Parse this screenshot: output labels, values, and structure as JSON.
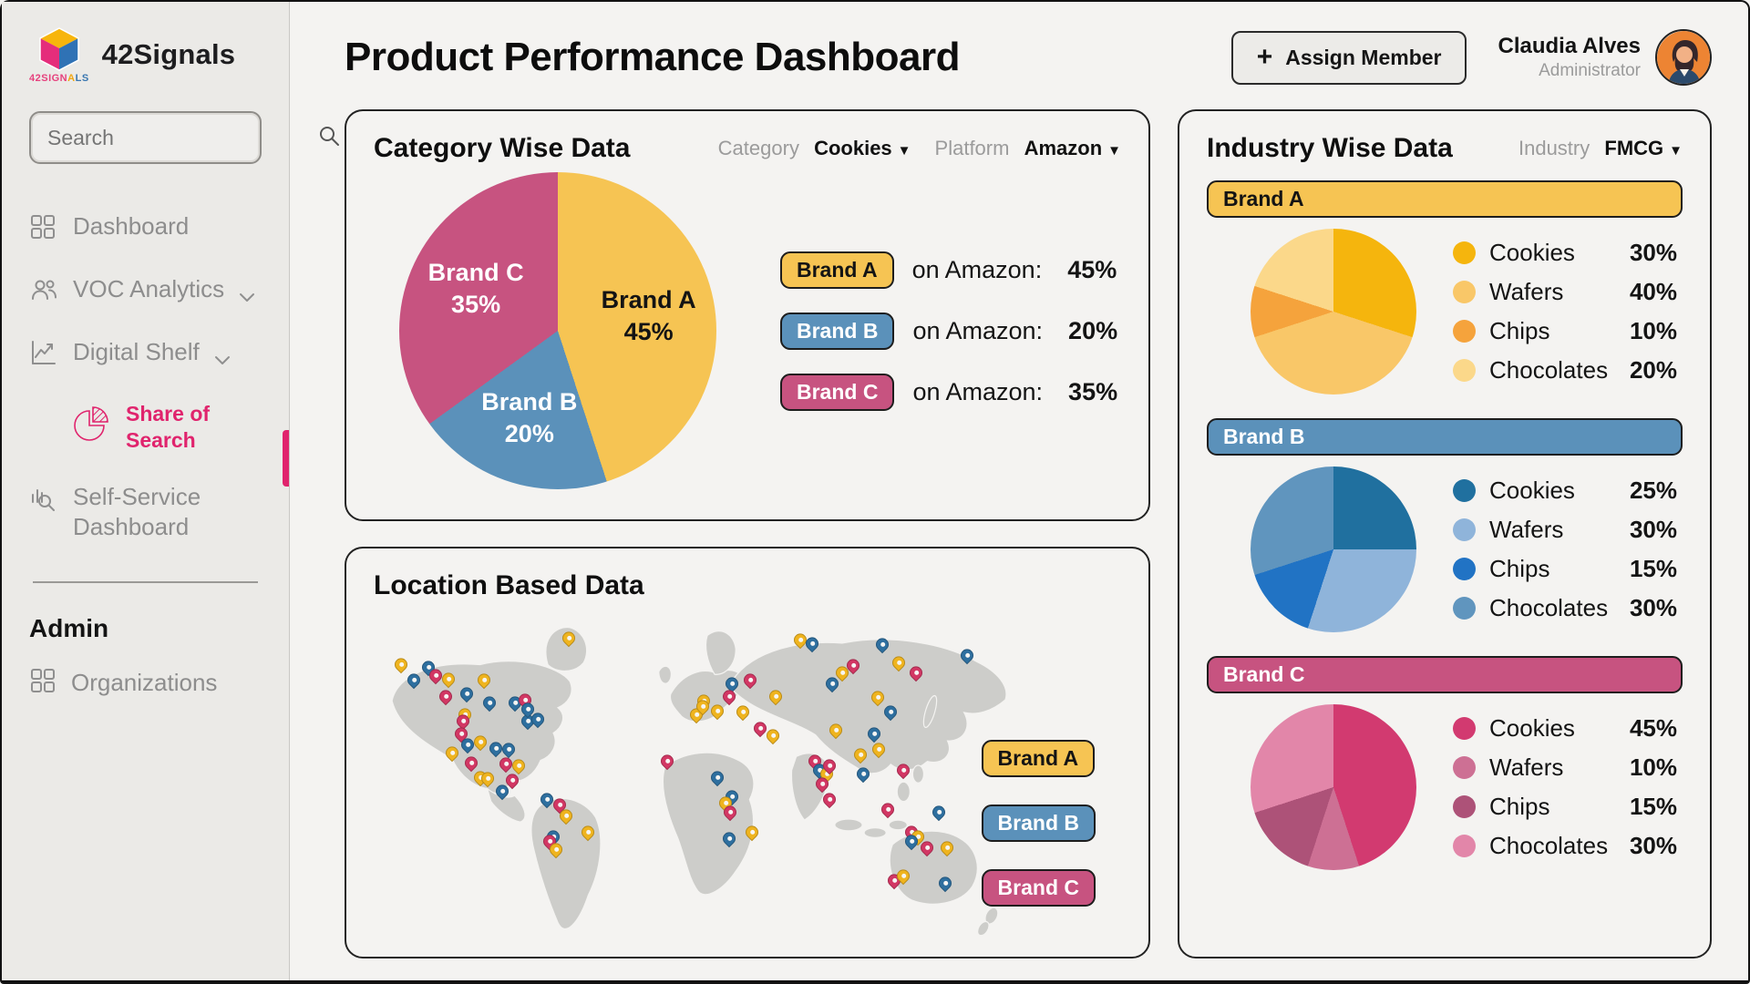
{
  "app": {
    "name": "42Signals",
    "logo_caption_1": "42SIGN",
    "logo_caption_2": "A",
    "logo_caption_3": "LS"
  },
  "sidebar": {
    "search_placeholder": "Search",
    "items": [
      {
        "label": "Dashboard",
        "icon": "grid-icon"
      },
      {
        "label": "VOC Analytics",
        "icon": "people-icon",
        "chevron": true
      },
      {
        "label": "Digital Shelf",
        "icon": "line-chart-icon",
        "chevron": true
      },
      {
        "label": "Share of Search",
        "icon": "pie-icon",
        "active": true
      },
      {
        "label": "Self-Service Dashboard",
        "icon": "chart-search-icon"
      }
    ],
    "section_label": "Admin",
    "admin_items": [
      {
        "label": "Organizations",
        "icon": "grid-icon"
      }
    ]
  },
  "header": {
    "title": "Product Performance Dashboard",
    "assign_button_label": "Assign Member",
    "user": {
      "name": "Claudia Alves",
      "role": "Administrator"
    }
  },
  "category_card": {
    "title": "Category Wise Data",
    "filters": [
      {
        "label": "Category",
        "value": "Cookies"
      },
      {
        "label": "Platform",
        "value": "Amazon"
      }
    ],
    "rows": [
      {
        "brand": "Brand A",
        "text": "on Amazon:",
        "value": "45%"
      },
      {
        "brand": "Brand B",
        "text": "on Amazon:",
        "value": "20%"
      },
      {
        "brand": "Brand C",
        "text": "on Amazon:",
        "value": "35%"
      }
    ]
  },
  "location_card": {
    "title": "Location Based Data",
    "brands": [
      "Brand A",
      "Brand B",
      "Brand C"
    ]
  },
  "industry_card": {
    "title": "Industry Wise Data",
    "filter_label": "Industry",
    "filter_value": "FMCG"
  },
  "colors": {
    "brand": {
      "a": "#f6c453",
      "b": "#5b91ba",
      "c": "#c75380"
    },
    "chip_text": {
      "a": "#141414",
      "b": "#ffffff",
      "c": "#ffffff"
    },
    "pin": {
      "a": "#efb41f",
      "b": "#2e6f9f",
      "c": "#d23764"
    },
    "map_land": "#cdcdca",
    "accent_pink": "#e0246d"
  },
  "chart_data": [
    {
      "type": "pie",
      "title": "Category Wise Data",
      "labels": [
        "Brand A",
        "Brand B",
        "Brand C"
      ],
      "values": [
        45,
        20,
        35
      ],
      "colors": [
        "#f6c453",
        "#5b91ba",
        "#c75380"
      ],
      "label_text_colors": [
        "#141414",
        "#ffffff",
        "#ffffff"
      ],
      "annotations": [
        "Brand A 45%",
        "Brand B 20%",
        "Brand C 35%"
      ]
    },
    {
      "type": "pie",
      "title": "Industry Wise Data - Brand A",
      "brand": "Brand A",
      "brand_key": "a",
      "categories": [
        "Cookies",
        "Wafers",
        "Chips",
        "Chocolates"
      ],
      "values": [
        30,
        40,
        10,
        20
      ],
      "colors": [
        "#f5b50d",
        "#f9c768",
        "#f5a33c",
        "#fbd88a"
      ]
    },
    {
      "type": "pie",
      "title": "Industry Wise Data - Brand B",
      "brand": "Brand B",
      "brand_key": "b",
      "categories": [
        "Cookies",
        "Wafers",
        "Chips",
        "Chocolates"
      ],
      "values": [
        25,
        30,
        15,
        30
      ],
      "colors": [
        "#20709f",
        "#8fb4da",
        "#2173c4",
        "#6095be"
      ]
    },
    {
      "type": "pie",
      "title": "Industry Wise Data - Brand C",
      "brand": "Brand C",
      "brand_key": "c",
      "categories": [
        "Cookies",
        "Wafers",
        "Chips",
        "Chocolates"
      ],
      "values": [
        45,
        10,
        15,
        30
      ],
      "colors": [
        "#d23a70",
        "#cd7094",
        "#ad5278",
        "#e286a9"
      ]
    },
    {
      "type": "map",
      "title": "Location Based Data",
      "pins": [
        [
          3.5,
          16,
          "a"
        ],
        [
          5.5,
          21,
          "b"
        ],
        [
          7.8,
          17,
          "b"
        ],
        [
          8.9,
          19.5,
          "c"
        ],
        [
          11,
          20.5,
          "a"
        ],
        [
          10.5,
          26,
          "c"
        ],
        [
          13.8,
          25,
          "b"
        ],
        [
          16.5,
          21,
          "a"
        ],
        [
          17.5,
          28,
          "b"
        ],
        [
          13.5,
          31.5,
          "a"
        ],
        [
          13.2,
          33.5,
          "c"
        ],
        [
          21.5,
          28,
          "b"
        ],
        [
          23,
          27,
          "c"
        ],
        [
          23.5,
          33.5,
          "b"
        ],
        [
          13,
          37.5,
          "c"
        ],
        [
          14,
          41,
          "b"
        ],
        [
          16,
          40,
          "a"
        ],
        [
          18.5,
          42,
          "b"
        ],
        [
          20.5,
          42.5,
          "b"
        ],
        [
          11.5,
          43.5,
          "a"
        ],
        [
          14.5,
          46.5,
          "c"
        ],
        [
          20,
          47,
          "c"
        ],
        [
          22,
          47.5,
          "a"
        ],
        [
          16,
          51,
          "a"
        ],
        [
          17.2,
          51.5,
          "a"
        ],
        [
          21,
          52,
          "c"
        ],
        [
          19.5,
          55.5,
          "b"
        ],
        [
          23.5,
          30,
          "b"
        ],
        [
          25,
          33,
          "b"
        ],
        [
          30,
          8,
          "a"
        ],
        [
          26.5,
          58,
          "b"
        ],
        [
          28.5,
          59.5,
          "c"
        ],
        [
          29.5,
          63,
          "a"
        ],
        [
          33,
          68,
          "a"
        ],
        [
          27.5,
          69.5,
          "b"
        ],
        [
          27,
          71,
          "c"
        ],
        [
          28,
          73.5,
          "a"
        ],
        [
          55.8,
          22,
          "b"
        ],
        [
          55.3,
          26,
          "c"
        ],
        [
          58.7,
          21,
          "c"
        ],
        [
          51.3,
          27.5,
          "a"
        ],
        [
          50.2,
          31.5,
          "a"
        ],
        [
          51.1,
          29,
          "a"
        ],
        [
          53.4,
          30.5,
          "a"
        ],
        [
          57.5,
          30.7,
          "a"
        ],
        [
          45.5,
          46,
          "c"
        ],
        [
          53.4,
          51,
          "b"
        ],
        [
          55.8,
          57,
          "b"
        ],
        [
          54.7,
          59,
          "a"
        ],
        [
          55.5,
          62,
          "c"
        ],
        [
          59,
          68,
          "a"
        ],
        [
          55.3,
          70,
          "b"
        ],
        [
          66.5,
          8.6,
          "a"
        ],
        [
          68.5,
          9.7,
          "b"
        ],
        [
          74.9,
          16.5,
          "c"
        ],
        [
          73.2,
          18.6,
          "a"
        ],
        [
          71.6,
          22,
          "b"
        ],
        [
          79.5,
          9.8,
          "b"
        ],
        [
          82.1,
          15.5,
          "a"
        ],
        [
          84.9,
          18.6,
          "c"
        ],
        [
          93,
          13.2,
          "b"
        ],
        [
          78.8,
          26.3,
          "a"
        ],
        [
          80.8,
          30.7,
          "b"
        ],
        [
          62.7,
          26,
          "a"
        ],
        [
          60.2,
          36,
          "c"
        ],
        [
          62.3,
          38,
          "a"
        ],
        [
          72.2,
          36.3,
          "a"
        ],
        [
          78.3,
          37.6,
          "b"
        ],
        [
          79,
          42.5,
          "a"
        ],
        [
          76.1,
          44.2,
          "a"
        ],
        [
          68.9,
          46,
          "c"
        ],
        [
          69.6,
          49,
          "b"
        ],
        [
          70.8,
          50,
          "a"
        ],
        [
          71.2,
          47.5,
          "c"
        ],
        [
          70,
          53,
          "c"
        ],
        [
          71.2,
          58,
          "c"
        ],
        [
          76.5,
          50,
          "b"
        ],
        [
          82.8,
          49,
          "c"
        ],
        [
          80.4,
          61,
          "c"
        ],
        [
          88.5,
          62,
          "b"
        ],
        [
          84.1,
          68,
          "c"
        ],
        [
          85.1,
          69.5,
          "a"
        ],
        [
          84.1,
          71,
          "b"
        ],
        [
          86.6,
          73,
          "c"
        ],
        [
          89.8,
          73,
          "a"
        ],
        [
          81.4,
          83,
          "c"
        ],
        [
          82.8,
          81.5,
          "a"
        ],
        [
          89.5,
          84,
          "b"
        ]
      ]
    }
  ]
}
